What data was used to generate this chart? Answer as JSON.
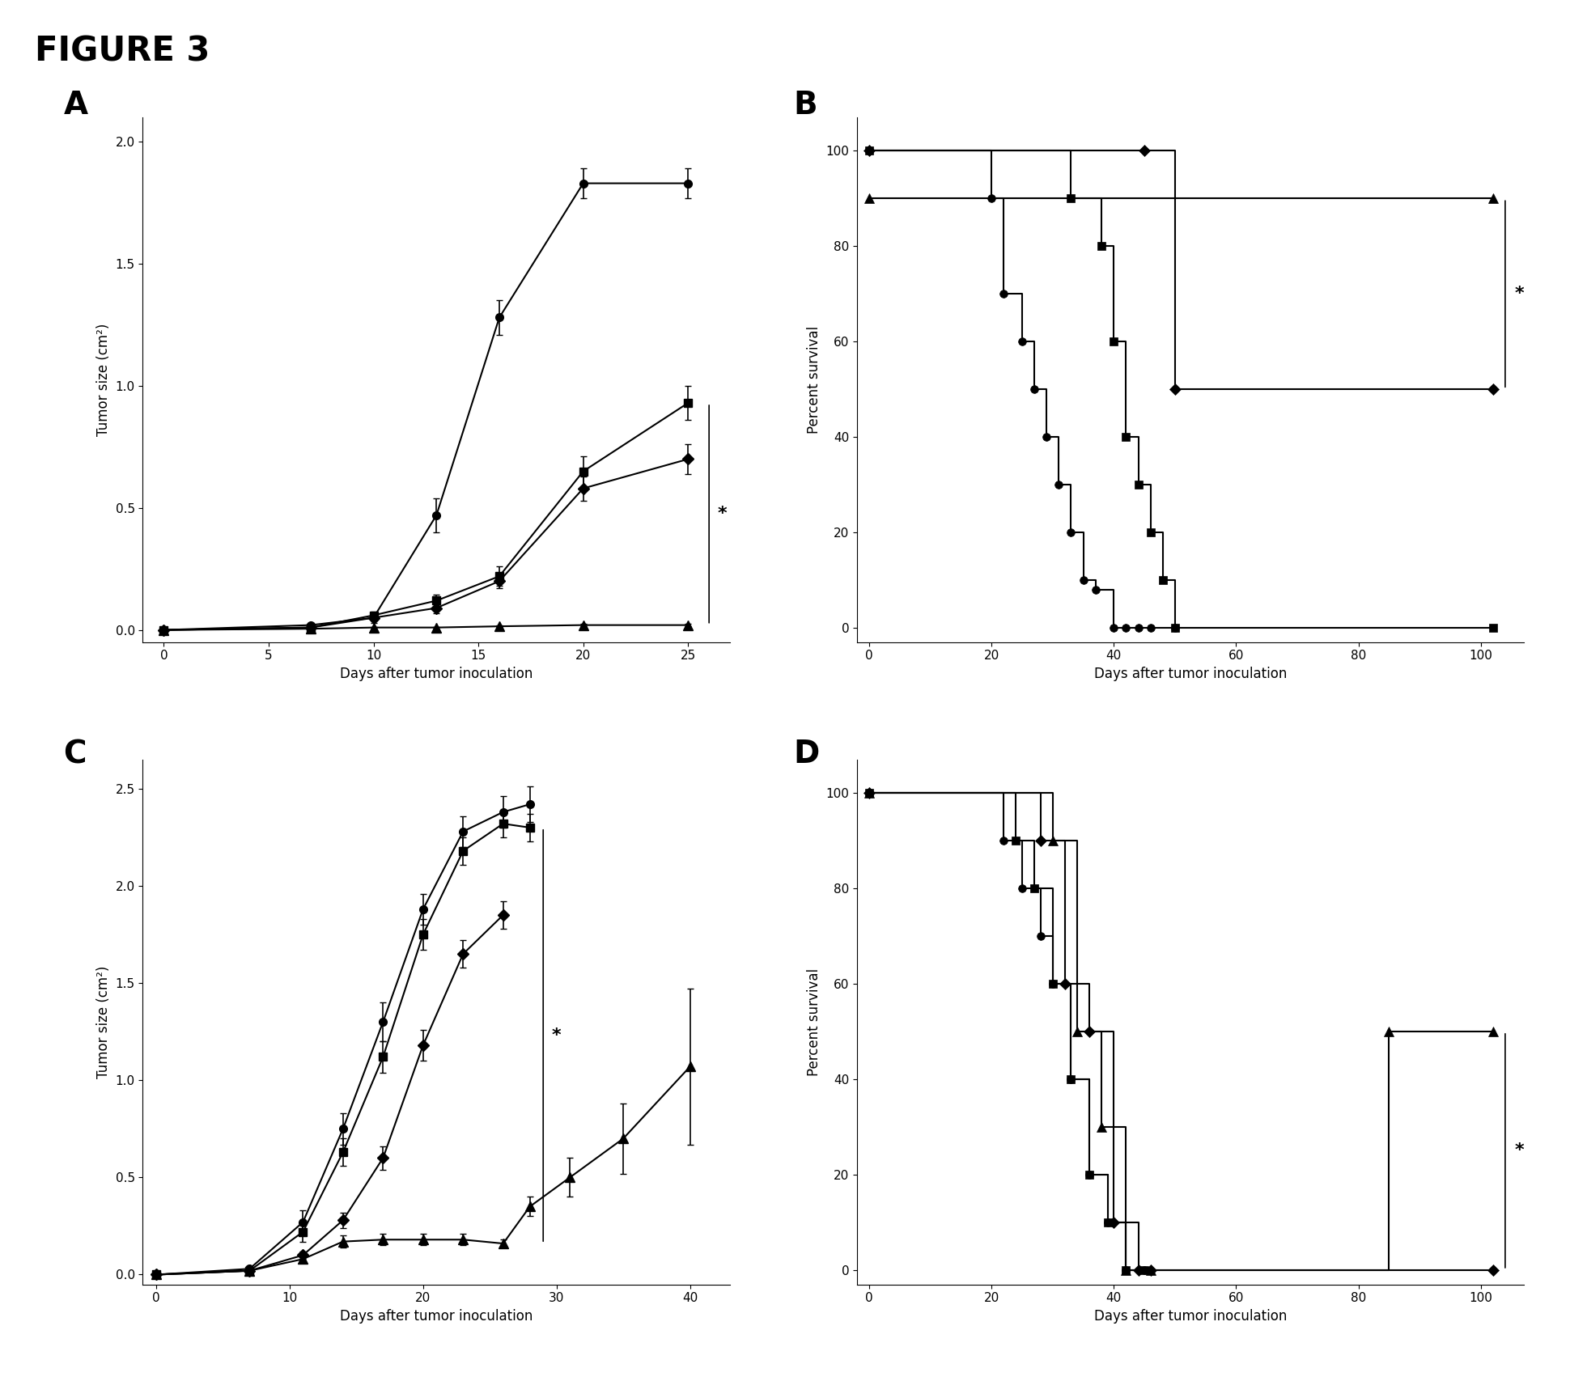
{
  "figure_title": "FIGURE 3",
  "panel_labels": [
    "A",
    "B",
    "C",
    "D"
  ],
  "background_color": "#ffffff",
  "panel_A": {
    "xlabel": "Days after tumor inoculation",
    "ylabel": "Tumor size (cm²)",
    "xlim": [
      -1,
      27
    ],
    "ylim": [
      -0.05,
      2.1
    ],
    "xticks": [
      0,
      5,
      10,
      15,
      20,
      25
    ],
    "yticks": [
      0.0,
      0.5,
      1.0,
      1.5,
      2.0
    ],
    "series": [
      {
        "x": [
          0,
          7,
          10,
          13,
          16,
          20,
          25
        ],
        "y": [
          0.0,
          0.02,
          0.05,
          0.47,
          1.28,
          1.83,
          1.83
        ],
        "yerr": [
          0.0,
          0.01,
          0.02,
          0.07,
          0.07,
          0.06,
          0.06
        ],
        "marker": "o",
        "color": "#000000",
        "linestyle": "-"
      },
      {
        "x": [
          0,
          7,
          10,
          13,
          16,
          20,
          25
        ],
        "y": [
          0.0,
          0.01,
          0.06,
          0.12,
          0.22,
          0.65,
          0.93
        ],
        "yerr": [
          0.0,
          0.005,
          0.015,
          0.025,
          0.04,
          0.06,
          0.07
        ],
        "marker": "s",
        "color": "#000000",
        "linestyle": "-"
      },
      {
        "x": [
          0,
          7,
          10,
          13,
          16,
          20,
          25
        ],
        "y": [
          0.0,
          0.01,
          0.05,
          0.09,
          0.2,
          0.58,
          0.7
        ],
        "yerr": [
          0.0,
          0.005,
          0.01,
          0.02,
          0.03,
          0.05,
          0.06
        ],
        "marker": "D",
        "color": "#000000",
        "linestyle": "-"
      },
      {
        "x": [
          0,
          7,
          10,
          13,
          16,
          20,
          25
        ],
        "y": [
          0.0,
          0.005,
          0.01,
          0.01,
          0.015,
          0.02,
          0.02
        ],
        "yerr": [
          0.0,
          0.003,
          0.003,
          0.003,
          0.003,
          0.004,
          0.004
        ],
        "marker": "^",
        "color": "#000000",
        "linestyle": "-"
      }
    ],
    "sig_x": 26.0,
    "sig_y1": 0.02,
    "sig_y2": 0.93,
    "sig_label": "*"
  },
  "panel_B": {
    "xlabel": "Days after tumor inoculation",
    "ylabel": "Percent survival",
    "xlim": [
      -2,
      107
    ],
    "ylim": [
      -3,
      107
    ],
    "xticks": [
      0,
      20,
      40,
      60,
      80,
      100
    ],
    "yticks": [
      0,
      20,
      40,
      60,
      80,
      100
    ],
    "series": [
      {
        "x": [
          0,
          20,
          22,
          25,
          27,
          29,
          31,
          33,
          35,
          37,
          40,
          42,
          44,
          46,
          50
        ],
        "y": [
          100,
          90,
          70,
          60,
          50,
          40,
          30,
          20,
          10,
          8,
          0,
          0,
          0,
          0,
          0
        ],
        "marker": "o",
        "color": "#000000"
      },
      {
        "x": [
          0,
          33,
          38,
          40,
          42,
          44,
          46,
          48,
          50,
          102
        ],
        "y": [
          100,
          90,
          80,
          60,
          40,
          30,
          20,
          10,
          0,
          0
        ],
        "marker": "s",
        "color": "#000000"
      },
      {
        "x": [
          0,
          45,
          50,
          102
        ],
        "y": [
          100,
          100,
          50,
          50
        ],
        "marker": "D",
        "color": "#000000"
      },
      {
        "x": [
          0,
          102
        ],
        "y": [
          90,
          90
        ],
        "marker": "^",
        "color": "#000000"
      }
    ],
    "sig_x": 104,
    "sig_y1": 50,
    "sig_y2": 90,
    "sig_label": "*"
  },
  "panel_C": {
    "xlabel": "Days after tumor inoculation",
    "ylabel": "Tumor size (cm²)",
    "xlim": [
      -1,
      43
    ],
    "ylim": [
      -0.05,
      2.65
    ],
    "xticks": [
      0,
      10,
      20,
      30,
      40
    ],
    "yticks": [
      0.0,
      0.5,
      1.0,
      1.5,
      2.0,
      2.5
    ],
    "series": [
      {
        "x": [
          0,
          7,
          11,
          14,
          17,
          20,
          23,
          26,
          28
        ],
        "y": [
          0.0,
          0.03,
          0.27,
          0.75,
          1.3,
          1.88,
          2.28,
          2.38,
          2.42
        ],
        "yerr": [
          0.0,
          0.01,
          0.06,
          0.08,
          0.1,
          0.08,
          0.08,
          0.08,
          0.09
        ],
        "marker": "o",
        "color": "#000000",
        "linestyle": "-"
      },
      {
        "x": [
          0,
          7,
          11,
          14,
          17,
          20,
          23,
          26,
          28
        ],
        "y": [
          0.0,
          0.02,
          0.22,
          0.63,
          1.12,
          1.75,
          2.18,
          2.32,
          2.3
        ],
        "yerr": [
          0.0,
          0.01,
          0.05,
          0.07,
          0.08,
          0.08,
          0.07,
          0.07,
          0.07
        ],
        "marker": "s",
        "color": "#000000",
        "linestyle": "-"
      },
      {
        "x": [
          0,
          7,
          11,
          14,
          17,
          20,
          23,
          26,
          28,
          31,
          35,
          40
        ],
        "y": [
          0.0,
          0.02,
          0.08,
          0.17,
          0.18,
          0.18,
          0.18,
          0.16,
          0.35,
          0.5,
          0.7,
          1.07
        ],
        "yerr": [
          0.0,
          0.01,
          0.02,
          0.03,
          0.03,
          0.03,
          0.03,
          0.02,
          0.05,
          0.1,
          0.18,
          0.4
        ],
        "marker": "^",
        "color": "#000000",
        "linestyle": "-"
      },
      {
        "x": [
          0,
          7,
          11,
          14,
          17,
          20,
          23,
          26
        ],
        "y": [
          0.0,
          0.02,
          0.1,
          0.28,
          0.6,
          1.18,
          1.65,
          1.85
        ],
        "yerr": [
          0.0,
          0.01,
          0.02,
          0.04,
          0.06,
          0.08,
          0.07,
          0.07
        ],
        "marker": "D",
        "color": "#000000",
        "linestyle": "-"
      }
    ],
    "sig_x": 29.0,
    "sig_y1": 0.16,
    "sig_y2": 2.3,
    "sig_label": "*"
  },
  "panel_D": {
    "xlabel": "Days after tumor inoculation",
    "ylabel": "Percent survival",
    "xlim": [
      -2,
      107
    ],
    "ylim": [
      -3,
      107
    ],
    "xticks": [
      0,
      20,
      40,
      60,
      80,
      100
    ],
    "yticks": [
      0,
      20,
      40,
      60,
      80,
      100
    ],
    "series": [
      {
        "x": [
          0,
          22,
          25,
          28,
          30,
          33,
          36,
          39,
          42,
          45
        ],
        "y": [
          100,
          90,
          80,
          70,
          60,
          40,
          20,
          10,
          0,
          0
        ],
        "marker": "o",
        "color": "#000000"
      },
      {
        "x": [
          0,
          24,
          27,
          30,
          33,
          36,
          39,
          42,
          45
        ],
        "y": [
          100,
          90,
          80,
          60,
          40,
          20,
          10,
          0,
          0
        ],
        "marker": "s",
        "color": "#000000"
      },
      {
        "x": [
          0,
          28,
          32,
          36,
          40,
          44,
          46,
          102
        ],
        "y": [
          100,
          90,
          60,
          50,
          10,
          0,
          0,
          0
        ],
        "marker": "D",
        "color": "#000000"
      },
      {
        "x": [
          0,
          30,
          34,
          38,
          42,
          46,
          85,
          102
        ],
        "y": [
          100,
          90,
          50,
          30,
          0,
          0,
          50,
          50
        ],
        "marker": "^",
        "color": "#000000"
      }
    ],
    "sig_x": 104,
    "sig_y1": 0,
    "sig_y2": 50,
    "sig_label": "*"
  }
}
